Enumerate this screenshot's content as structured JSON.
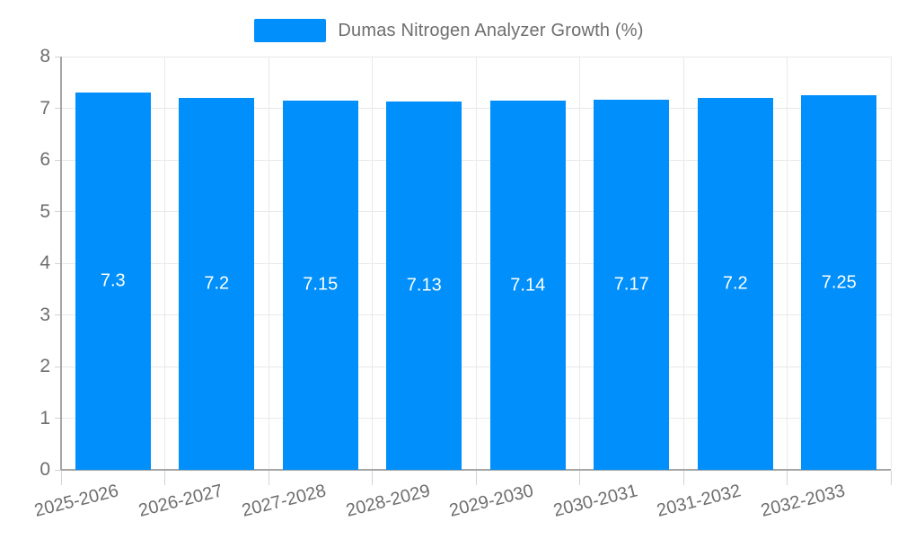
{
  "legend": {
    "label": "Dumas Nitrogen Analyzer Growth (%)",
    "swatch_color": "#008FFB"
  },
  "chart_data": {
    "type": "bar",
    "title": "Dumas Nitrogen Analyzer Growth (%)",
    "categories": [
      "2025-2026",
      "2026-2027",
      "2027-2028",
      "2028-2029",
      "2029-2030",
      "2030-2031",
      "2031-2032",
      "2032-2033"
    ],
    "series": [
      {
        "name": "Dumas Nitrogen Analyzer Growth (%)",
        "values": [
          7.3,
          7.2,
          7.15,
          7.13,
          7.14,
          7.17,
          7.2,
          7.25
        ]
      }
    ],
    "values": [
      7.3,
      7.2,
      7.15,
      7.13,
      7.14,
      7.17,
      7.2,
      7.25
    ],
    "data_labels": [
      "7.3",
      "7.2",
      "7.15",
      "7.13",
      "7.14",
      "7.17",
      "7.2",
      "7.25"
    ],
    "xlabel": "",
    "ylabel": "",
    "ylim": [
      0,
      8
    ],
    "ytick_step": 1,
    "ytick_labels": [
      "0",
      "1",
      "2",
      "3",
      "4",
      "5",
      "6",
      "7",
      "8"
    ],
    "grid": true,
    "legend_position": "top",
    "bar_color": "#008FFB",
    "value_label_color": "#ffffff",
    "axis_text_color": "#6e6e6e",
    "x_label_rotation_deg": -14
  }
}
